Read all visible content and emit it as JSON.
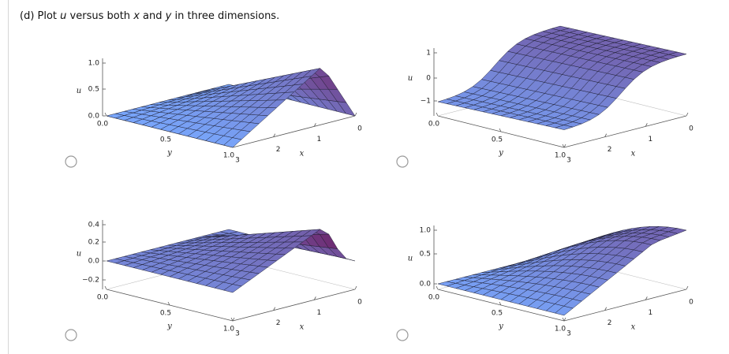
{
  "question": [
    "(d) Plot ",
    "u",
    " versus both ",
    "x",
    " and ",
    "y",
    " in three dimensions."
  ],
  "options": [
    {
      "u_label": "u",
      "y_label": "y",
      "x_label": "x",
      "u_ticks": [
        "1.0",
        "0.5",
        "0.0"
      ],
      "y_ticks": [
        "0.0",
        "0.5",
        "1.0"
      ],
      "x_ticks": [
        "3",
        "2",
        "1",
        "0"
      ]
    },
    {
      "u_label": "u",
      "y_label": "y",
      "x_label": "x",
      "u_ticks": [
        "1",
        "0",
        "−1"
      ],
      "y_ticks": [
        "0.0",
        "0.5",
        "1.0"
      ],
      "x_ticks": [
        "3",
        "2",
        "1",
        "0"
      ]
    },
    {
      "u_label": "u",
      "y_label": "y",
      "x_label": "x",
      "u_ticks": [
        "0.4",
        "0.2",
        "0.0",
        "−0.2"
      ],
      "y_ticks": [
        "0.0",
        "0.5",
        "1.0"
      ],
      "x_ticks": [
        "3",
        "2",
        "1",
        "0"
      ]
    },
    {
      "u_label": "u",
      "y_label": "y",
      "x_label": "x",
      "u_ticks": [
        "1.0",
        "0.5",
        "0.0"
      ],
      "y_ticks": [
        "0.0",
        "0.5",
        "1.0"
      ],
      "x_ticks": [
        "3",
        "2",
        "1",
        "0"
      ]
    }
  ]
}
